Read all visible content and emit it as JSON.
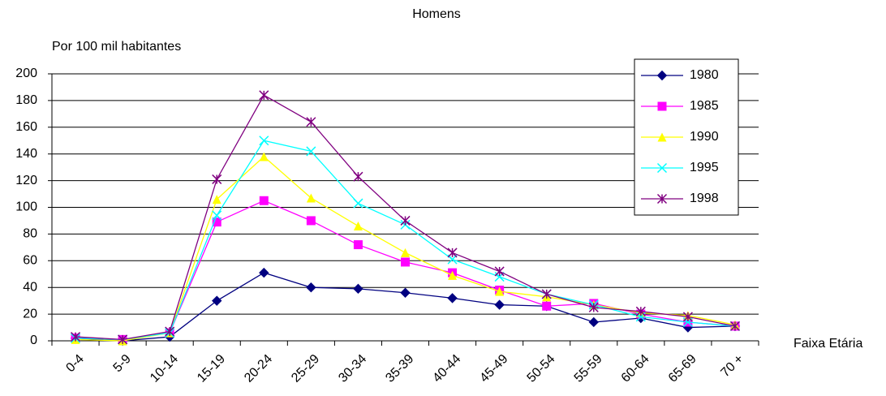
{
  "chart_data": {
    "type": "line",
    "title": "Homens",
    "y_label": "Por 100 mil habitantes",
    "x_label": "Faixa Etária",
    "categories": [
      "0-4",
      "5-9",
      "10-14",
      "15-19",
      "20-24",
      "25-29",
      "30-34",
      "35-39",
      "40-44",
      "45-49",
      "50-54",
      "55-59",
      "60-64",
      "65-69",
      "70 +"
    ],
    "series": [
      {
        "name": "1980",
        "color": "#000080",
        "marker": "diamond",
        "values": [
          2,
          0,
          3,
          30,
          51,
          40,
          39,
          36,
          32,
          27,
          26,
          14,
          17,
          10,
          11
        ]
      },
      {
        "name": "1985",
        "color": "#ff00ff",
        "marker": "square",
        "values": [
          2,
          1,
          6,
          89,
          105,
          90,
          72,
          59,
          51,
          38,
          26,
          28,
          20,
          14,
          11
        ]
      },
      {
        "name": "1990",
        "color": "#ffff00",
        "marker": "triangle",
        "values": [
          1,
          0,
          6,
          106,
          138,
          107,
          86,
          66,
          49,
          37,
          33,
          27,
          21,
          19,
          12
        ]
      },
      {
        "name": "1995",
        "color": "#00ffff",
        "marker": "x",
        "values": [
          2,
          1,
          6,
          94,
          150,
          142,
          103,
          87,
          61,
          48,
          35,
          27,
          18,
          14,
          11
        ]
      },
      {
        "name": "1998",
        "color": "#800080",
        "marker": "star",
        "values": [
          3,
          1,
          7,
          121,
          184,
          164,
          123,
          90,
          66,
          52,
          35,
          25,
          22,
          18,
          11
        ]
      }
    ],
    "ylim": [
      0,
      200
    ],
    "yticks": [
      0,
      20,
      40,
      60,
      80,
      100,
      120,
      140,
      160,
      180,
      200
    ],
    "grid": true,
    "legend": "top-right"
  }
}
